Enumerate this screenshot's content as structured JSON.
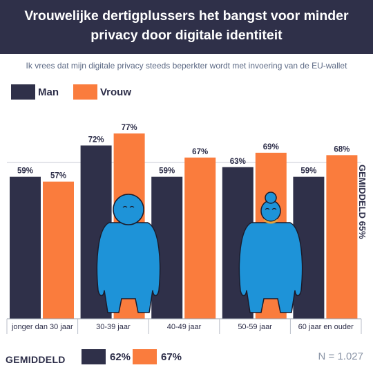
{
  "title": "Vrouwelijke dertigplussers het bangst voor minder privacy door digitale identiteit",
  "subtitle": "Ik vrees dat mijn digitale privacy steeds beperkter wordt met invoering van de EU-wallet",
  "colors": {
    "man": "#2f3049",
    "vrouw": "#fa7c3d",
    "figure": "#1e93d8"
  },
  "chart_data": {
    "type": "bar",
    "categories": [
      "jonger dan 30 jaar",
      "30-39 jaar",
      "40-49 jaar",
      "50-59 jaar",
      "60 jaar en ouder"
    ],
    "series": [
      {
        "name": "Man",
        "values": [
          59,
          72,
          59,
          63,
          59
        ]
      },
      {
        "name": "Vrouw",
        "values": [
          57,
          77,
          67,
          69,
          68
        ]
      }
    ],
    "value_suffix": "%",
    "ylim": [
      0,
      100
    ],
    "reference_line": {
      "value": 65,
      "label": "GEMIDDELD 65%"
    },
    "legend": "top-left"
  },
  "average": {
    "label": "GEMIDDELD",
    "man": "62%",
    "vrouw": "67%"
  },
  "sample": "N = 1.027"
}
